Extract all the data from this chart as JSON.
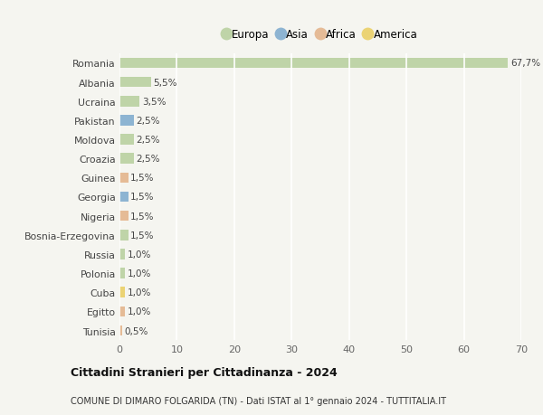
{
  "countries": [
    "Romania",
    "Albania",
    "Ucraina",
    "Pakistan",
    "Moldova",
    "Croazia",
    "Guinea",
    "Georgia",
    "Nigeria",
    "Bosnia-Erzegovina",
    "Russia",
    "Polonia",
    "Cuba",
    "Egitto",
    "Tunisia"
  ],
  "values": [
    67.7,
    5.5,
    3.5,
    2.5,
    2.5,
    2.5,
    1.5,
    1.5,
    1.5,
    1.5,
    1.0,
    1.0,
    1.0,
    1.0,
    0.5
  ],
  "labels": [
    "67,7%",
    "5,5%",
    "3,5%",
    "2,5%",
    "2,5%",
    "2,5%",
    "1,5%",
    "1,5%",
    "1,5%",
    "1,5%",
    "1,0%",
    "1,0%",
    "1,0%",
    "1,0%",
    "0,5%"
  ],
  "continents": [
    "Europa",
    "Europa",
    "Europa",
    "Asia",
    "Europa",
    "Europa",
    "Africa",
    "Asia",
    "Africa",
    "Europa",
    "Europa",
    "Europa",
    "America",
    "Africa",
    "Africa"
  ],
  "continent_colors": {
    "Europa": "#adc990",
    "Asia": "#6b9ec8",
    "Africa": "#e0a878",
    "America": "#e8c84a"
  },
  "legend_order": [
    "Europa",
    "Asia",
    "Africa",
    "America"
  ],
  "title": "Cittadini Stranieri per Cittadinanza - 2024",
  "subtitle": "COMUNE DI DIMARO FOLGARIDA (TN) - Dati ISTAT al 1° gennaio 2024 - TUTTITALIA.IT",
  "xlim": [
    0,
    70
  ],
  "xticks": [
    0,
    10,
    20,
    30,
    40,
    50,
    60,
    70
  ],
  "background_color": "#f5f5f0",
  "grid_color": "#ffffff",
  "bar_alpha": 0.75,
  "bar_height": 0.55
}
